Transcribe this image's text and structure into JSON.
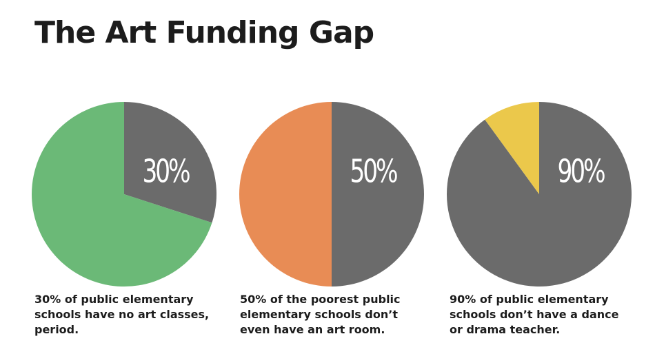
{
  "title": "The Art Funding Gap",
  "colors": {
    "gray": "#6b6b6b",
    "green": "#6bb977",
    "orange": "#e88c55",
    "yellow": "#ebc84b"
  },
  "chart_data": [
    {
      "type": "pie",
      "label": "30%",
      "caption": "30% of public elementary schools have no art classes, period.",
      "slices": [
        {
          "value": 30,
          "color": "#6b6b6b"
        },
        {
          "value": 70,
          "color": "#6bb977"
        }
      ]
    },
    {
      "type": "pie",
      "label": "50%",
      "caption": "50% of  the poorest public elementary schools don’t even have an art room.",
      "slices": [
        {
          "value": 50,
          "color": "#6b6b6b"
        },
        {
          "value": 50,
          "color": "#e88c55"
        }
      ]
    },
    {
      "type": "pie",
      "label": "90%",
      "caption": "90% of public elementary schools don’t have a dance or drama teacher.",
      "slices": [
        {
          "value": 90,
          "color": "#6b6b6b"
        },
        {
          "value": 10,
          "color": "#ebc84b"
        }
      ]
    }
  ]
}
